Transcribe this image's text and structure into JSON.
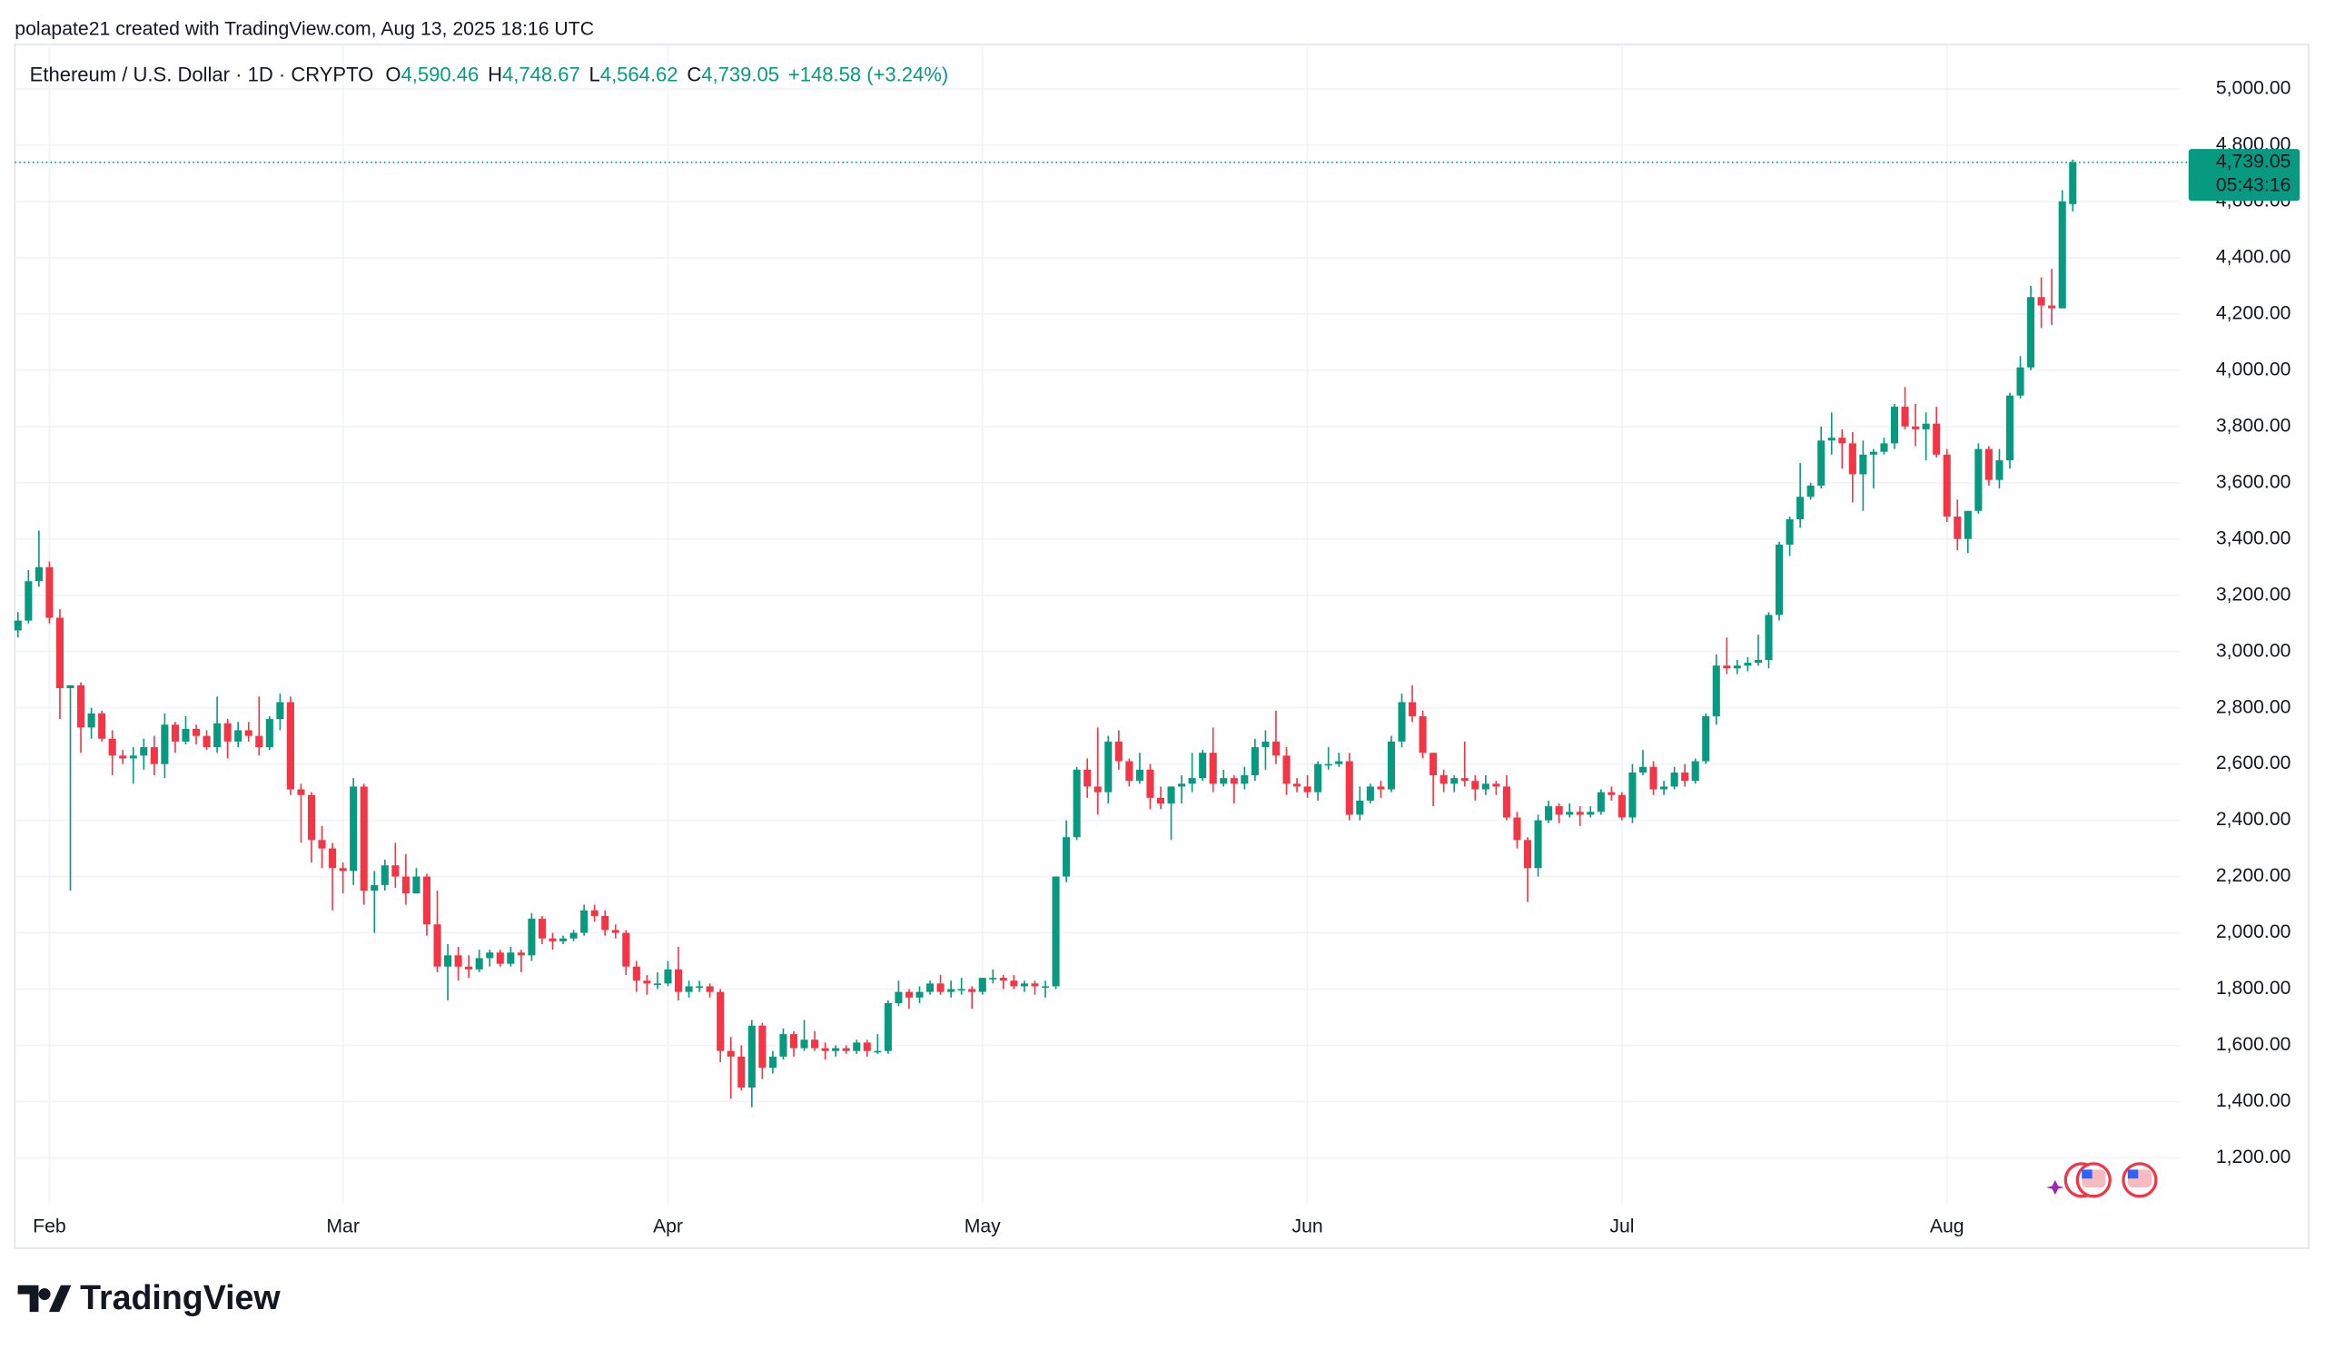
{
  "caption": "polapate21 created with TradingView.com, Aug 13, 2025 18:16 UTC",
  "logo": "TradingView",
  "chart_data": {
    "type": "candlestick",
    "symbol": "Ethereum / U.S. Dollar · 1D · CRYPTO",
    "ohlc_legend": [
      {
        "key": "O",
        "text": "4,590.46"
      },
      {
        "key": "H",
        "text": "4,748.67"
      },
      {
        "key": "L",
        "text": "4,564.62"
      },
      {
        "key": "C",
        "text": "4,739.05"
      }
    ],
    "change": "+148.58 (+3.24%)",
    "up_color": "#089981",
    "down_color": "#f23645",
    "last_price": {
      "value": 4739.05,
      "label": "4,739.05"
    },
    "countdown": "05:43:16",
    "grid": true,
    "xlim": [
      -0.3,
      206.2
    ],
    "xticks": [
      {
        "value": 3,
        "label": "Feb"
      },
      {
        "value": 31,
        "label": "Mar"
      },
      {
        "value": 62,
        "label": "Apr"
      },
      {
        "value": 92,
        "label": "May"
      },
      {
        "value": 123,
        "label": "Jun"
      },
      {
        "value": 153,
        "label": "Jul"
      },
      {
        "value": 184,
        "label": "Aug"
      }
    ],
    "ylim": [
      1037,
      5158
    ],
    "yticks": [
      {
        "value": 1200,
        "label": "1,200.00"
      },
      {
        "value": 1400,
        "label": "1,400.00"
      },
      {
        "value": 1600,
        "label": "1,600.00"
      },
      {
        "value": 1800,
        "label": "1,800.00"
      },
      {
        "value": 2000,
        "label": "2,000.00"
      },
      {
        "value": 2200,
        "label": "2,200.00"
      },
      {
        "value": 2400,
        "label": "2,400.00"
      },
      {
        "value": 2600,
        "label": "2,600.00"
      },
      {
        "value": 2800,
        "label": "2,800.00"
      },
      {
        "value": 3000,
        "label": "3,000.00"
      },
      {
        "value": 3200,
        "label": "3,200.00"
      },
      {
        "value": 3400,
        "label": "3,400.00"
      },
      {
        "value": 3600,
        "label": "3,600.00"
      },
      {
        "value": 3800,
        "label": "3,800.00"
      },
      {
        "value": 4000,
        "label": "4,000.00"
      },
      {
        "value": 4200,
        "label": "4,200.00"
      },
      {
        "value": 4400,
        "label": "4,400.00"
      },
      {
        "value": 4600,
        "label": "4,600.00"
      },
      {
        "value": 4800,
        "label": "4,800.00"
      },
      {
        "value": 5000,
        "label": "5,000.00"
      }
    ],
    "open": [
      3075,
      3110,
      3250,
      3300,
      3120,
      2870,
      2880,
      2730,
      2780,
      2690,
      2630,
      2620,
      2630,
      2660,
      2600,
      2740,
      2680,
      2725,
      2700,
      2660,
      2745,
      2680,
      2720,
      2700,
      2660,
      2760,
      2820,
      2510,
      2490,
      2330,
      2300,
      2230,
      2220,
      2520,
      2150,
      2170,
      2240,
      2200,
      2140,
      2200,
      2030,
      1880,
      1920,
      1880,
      1870,
      1910,
      1930,
      1890,
      1930,
      1920,
      2050,
      1980,
      1970,
      1980,
      2000,
      2080,
      2060,
      2010,
      2000,
      1880,
      1830,
      1820,
      1820,
      1870,
      1790,
      1810,
      1810,
      1790,
      1580,
      1560,
      1450,
      1670,
      1520,
      1560,
      1640,
      1590,
      1620,
      1590,
      1580,
      1590,
      1580,
      1610,
      1580,
      1580,
      1750,
      1790,
      1770,
      1790,
      1820,
      1790,
      1800,
      1800,
      1790,
      1840,
      1840,
      1830,
      1810,
      1820,
      1810,
      1810,
      2200,
      2340,
      2580,
      2520,
      2500,
      2680,
      2610,
      2540,
      2580,
      2480,
      2460,
      2520,
      2530,
      2550,
      2640,
      2530,
      2550,
      2530,
      2560,
      2660,
      2680,
      2630,
      2530,
      2520,
      2500,
      2600,
      2600,
      2610,
      2420,
      2470,
      2520,
      2510,
      2680,
      2820,
      2770,
      2640,
      2560,
      2530,
      2550,
      2540,
      2510,
      2530,
      2520,
      2410,
      2330,
      2230,
      2400,
      2450,
      2420,
      2430,
      2420,
      2430,
      2500,
      2490,
      2410,
      2570,
      2590,
      2510,
      2520,
      2570,
      2540,
      2610,
      2770,
      2950,
      2940,
      2950,
      2960,
      2970,
      3130,
      3380,
      3470,
      3550,
      3590,
      3750,
      3760,
      3740,
      3630,
      3700,
      3710,
      3740,
      3870,
      3800,
      3790,
      3810,
      3700,
      3480,
      3400,
      3500,
      3720,
      3610,
      3680,
      3910,
      4010,
      4260,
      4230,
      4220,
      4590.46
    ],
    "high": [
      3140,
      3290,
      3430,
      3320,
      3150,
      2880,
      2890,
      2800,
      2790,
      2720,
      2650,
      2660,
      2690,
      2700,
      2780,
      2750,
      2770,
      2740,
      2720,
      2840,
      2760,
      2750,
      2750,
      2840,
      2770,
      2850,
      2840,
      2530,
      2500,
      2380,
      2320,
      2250,
      2550,
      2530,
      2220,
      2260,
      2320,
      2280,
      2230,
      2210,
      2150,
      1960,
      1950,
      1920,
      1940,
      1940,
      1940,
      1950,
      1940,
      2070,
      2060,
      2000,
      1990,
      2010,
      2100,
      2100,
      2080,
      2030,
      2010,
      1900,
      1850,
      1860,
      1900,
      1950,
      1830,
      1830,
      1820,
      1800,
      1630,
      1600,
      1690,
      1680,
      1580,
      1660,
      1650,
      1690,
      1650,
      1610,
      1600,
      1600,
      1620,
      1620,
      1640,
      1760,
      1830,
      1800,
      1810,
      1830,
      1850,
      1830,
      1840,
      1810,
      1840,
      1870,
      1850,
      1850,
      1830,
      1830,
      1830,
      2200,
      2400,
      2590,
      2620,
      2730,
      2700,
      2720,
      2620,
      2640,
      2600,
      2520,
      2520,
      2560,
      2640,
      2650,
      2730,
      2580,
      2560,
      2590,
      2690,
      2720,
      2790,
      2660,
      2550,
      2560,
      2610,
      2660,
      2640,
      2640,
      2520,
      2530,
      2540,
      2700,
      2850,
      2880,
      2790,
      2640,
      2580,
      2560,
      2680,
      2560,
      2560,
      2540,
      2560,
      2430,
      2340,
      2420,
      2470,
      2460,
      2460,
      2450,
      2450,
      2510,
      2520,
      2500,
      2600,
      2650,
      2610,
      2540,
      2590,
      2600,
      2620,
      2780,
      2990,
      3050,
      2970,
      2980,
      3060,
      3140,
      3390,
      3480,
      3670,
      3600,
      3800,
      3850,
      3790,
      3780,
      3750,
      3720,
      3760,
      3880,
      3940,
      3880,
      3850,
      3870,
      3720,
      3540,
      3500,
      3740,
      3730,
      3720,
      3920,
      4050,
      4300,
      4330,
      4360,
      4640,
      4748.67
    ],
    "low": [
      3050,
      3100,
      3230,
      3100,
      2760,
      2150,
      2640,
      2690,
      2680,
      2560,
      2600,
      2530,
      2580,
      2560,
      2550,
      2640,
      2670,
      2670,
      2650,
      2640,
      2620,
      2660,
      2680,
      2630,
      2650,
      2720,
      2490,
      2320,
      2250,
      2230,
      2080,
      2140,
      2170,
      2100,
      2000,
      2150,
      2160,
      2100,
      2140,
      1990,
      1860,
      1760,
      1830,
      1840,
      1860,
      1880,
      1880,
      1880,
      1860,
      1900,
      1960,
      1940,
      1960,
      1970,
      1990,
      2040,
      1990,
      1980,
      1850,
      1790,
      1780,
      1800,
      1810,
      1760,
      1770,
      1790,
      1770,
      1540,
      1410,
      1440,
      1380,
      1480,
      1500,
      1550,
      1560,
      1580,
      1580,
      1550,
      1560,
      1570,
      1570,
      1560,
      1570,
      1570,
      1740,
      1730,
      1750,
      1780,
      1780,
      1770,
      1780,
      1730,
      1780,
      1820,
      1800,
      1800,
      1790,
      1780,
      1770,
      1800,
      2180,
      2330,
      2480,
      2420,
      2460,
      2580,
      2520,
      2530,
      2440,
      2440,
      2330,
      2460,
      2500,
      2540,
      2500,
      2520,
      2460,
      2510,
      2540,
      2580,
      2600,
      2490,
      2500,
      2480,
      2470,
      2580,
      2590,
      2400,
      2400,
      2460,
      2480,
      2500,
      2660,
      2750,
      2620,
      2450,
      2500,
      2500,
      2520,
      2470,
      2490,
      2490,
      2400,
      2300,
      2110,
      2200,
      2390,
      2390,
      2410,
      2380,
      2410,
      2420,
      2470,
      2400,
      2390,
      2560,
      2490,
      2490,
      2510,
      2520,
      2530,
      2600,
      2740,
      2920,
      2920,
      2930,
      2950,
      2940,
      3110,
      3340,
      3440,
      3540,
      3580,
      3700,
      3650,
      3530,
      3500,
      3580,
      3700,
      3720,
      3790,
      3730,
      3680,
      3690,
      3460,
      3360,
      3350,
      3490,
      3590,
      3580,
      3650,
      3900,
      4000,
      4150,
      4160,
      4220,
      4564.62
    ],
    "close": [
      3110,
      3250,
      3300,
      3120,
      2870,
      2880,
      2730,
      2780,
      2690,
      2630,
      2620,
      2630,
      2660,
      2600,
      2740,
      2680,
      2725,
      2700,
      2660,
      2745,
      2680,
      2720,
      2700,
      2660,
      2760,
      2820,
      2510,
      2490,
      2330,
      2300,
      2230,
      2220,
      2520,
      2150,
      2170,
      2240,
      2200,
      2140,
      2200,
      2030,
      1880,
      1920,
      1880,
      1870,
      1910,
      1930,
      1890,
      1930,
      1920,
      2050,
      1980,
      1970,
      1980,
      2000,
      2080,
      2060,
      2010,
      2000,
      1880,
      1830,
      1820,
      1820,
      1870,
      1790,
      1810,
      1810,
      1790,
      1580,
      1560,
      1450,
      1670,
      1520,
      1560,
      1640,
      1590,
      1620,
      1590,
      1580,
      1590,
      1580,
      1610,
      1580,
      1580,
      1750,
      1790,
      1770,
      1790,
      1820,
      1790,
      1800,
      1800,
      1790,
      1840,
      1840,
      1830,
      1810,
      1820,
      1810,
      1810,
      2200,
      2340,
      2580,
      2520,
      2500,
      2680,
      2610,
      2540,
      2580,
      2480,
      2460,
      2520,
      2530,
      2550,
      2640,
      2530,
      2550,
      2530,
      2560,
      2660,
      2680,
      2630,
      2530,
      2520,
      2500,
      2600,
      2600,
      2610,
      2420,
      2470,
      2520,
      2510,
      2680,
      2820,
      2770,
      2640,
      2560,
      2530,
      2550,
      2540,
      2510,
      2530,
      2520,
      2410,
      2330,
      2230,
      2400,
      2450,
      2420,
      2430,
      2420,
      2430,
      2500,
      2490,
      2410,
      2570,
      2590,
      2510,
      2520,
      2570,
      2540,
      2610,
      2770,
      2950,
      2940,
      2950,
      2960,
      2970,
      3130,
      3380,
      3470,
      3550,
      3590,
      3750,
      3760,
      3740,
      3630,
      3700,
      3710,
      3740,
      3870,
      3800,
      3790,
      3810,
      3700,
      3480,
      3400,
      3500,
      3720,
      3610,
      3680,
      3910,
      4010,
      4260,
      4230,
      4220,
      4600,
      4739.05
    ]
  }
}
